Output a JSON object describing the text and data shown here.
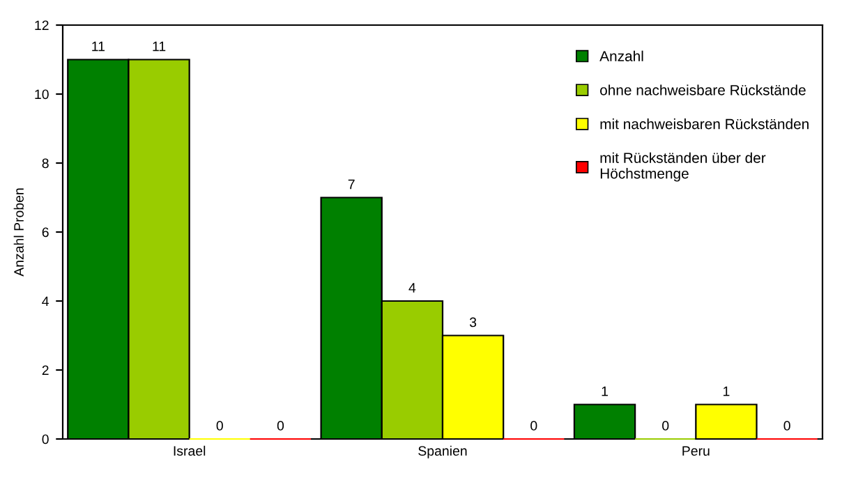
{
  "chart_data": {
    "type": "bar",
    "ylabel": "Anzahl Proben",
    "categories": [
      "Israel",
      "Spanien",
      "Peru"
    ],
    "series": [
      {
        "name": "Anzahl",
        "color": "#008000",
        "values": [
          11,
          7,
          1
        ]
      },
      {
        "name": "ohne nachweisbare Rückstände",
        "color": "#99cc00",
        "values": [
          11,
          4,
          0
        ]
      },
      {
        "name": "mit nachweisbaren Rückständen",
        "color": "#ffff00",
        "values": [
          0,
          3,
          1
        ]
      },
      {
        "name": "mit Rückständen über der\nHöchstmenge",
        "color": "#ff0000",
        "values": [
          0,
          0,
          0
        ]
      }
    ],
    "ylim": [
      0,
      12
    ],
    "yticks": [
      0,
      2,
      4,
      6,
      8,
      10,
      12
    ],
    "data_labels": true,
    "legend": "top right",
    "grid": false
  }
}
